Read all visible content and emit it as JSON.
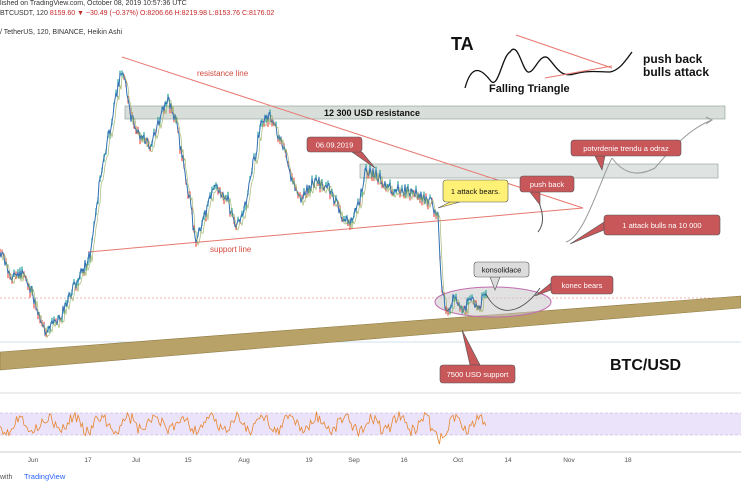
{
  "header": {
    "published": "lished on TradingView.com, October 08, 2019 10:57:36 UTC",
    "symbol": "BTCUSDT, 120",
    "ohlc": "8159.60 ▼ −30.49 (−0.37%) O:8206.66 H:8219.98 L:8153.76 C:8176.02",
    "instrument": "/ TetherUS, 120, BINANCE, Heikin Ashi"
  },
  "footer": {
    "credit_prefix": "with",
    "credit_brand": "TradingView"
  },
  "colors": {
    "resistance": "#e8776f",
    "support_band": "#b8a268",
    "zone": "#b8c4be",
    "callout_red": "#c8575a",
    "callout_yellow": "#fff176",
    "rsi": "#e8852e",
    "rsi_band": "#e6dcf7",
    "price_line": "#2f6fb2"
  },
  "chart_data": {
    "type": "line",
    "x_tick_labels": [
      "Jun",
      "17",
      "Jul",
      "15",
      "Aug",
      "19",
      "Sep",
      "16",
      "Oct",
      "14",
      "Nov",
      "18"
    ],
    "texts": {
      "ta": "TA",
      "falling_triangle": "Falling Triangle",
      "push_back_bulls": "push back\nbulls attack",
      "resistance_line": "resistance line",
      "support_line": "support line",
      "zone_12300": "12 300 USD resistance",
      "date_callout": "06.09.2019",
      "attack_bears": "1 attack bears.",
      "push_back": "push back",
      "potvrdenie": "potvrdenie trendu a odraz",
      "attack_bulls": "1 attack bulls  na 10 000",
      "konsolidace": "konsolidace",
      "konec_bears": "konec bears",
      "support_7500": "7500 USD support",
      "pair": "BTC/USD"
    }
  }
}
